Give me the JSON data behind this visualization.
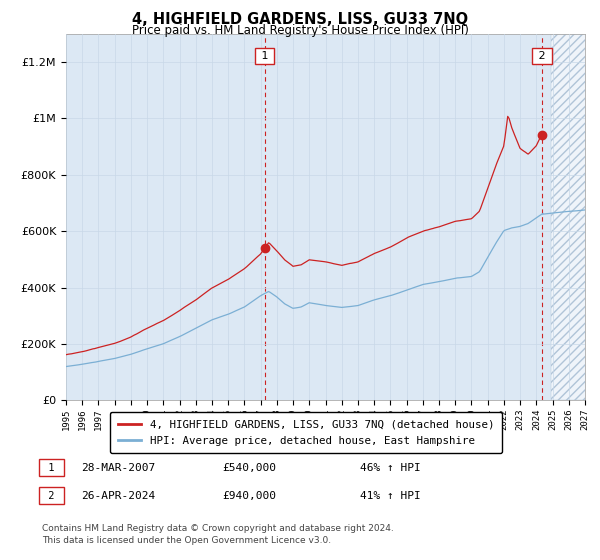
{
  "title": "4, HIGHFIELD GARDENS, LISS, GU33 7NQ",
  "subtitle": "Price paid vs. HM Land Registry's House Price Index (HPI)",
  "legend_line1": "4, HIGHFIELD GARDENS, LISS, GU33 7NQ (detached house)",
  "legend_line2": "HPI: Average price, detached house, East Hampshire",
  "note_line1": "Contains HM Land Registry data © Crown copyright and database right 2024.",
  "note_line2": "This data is licensed under the Open Government Licence v3.0.",
  "annotation1_label": "1",
  "annotation1_date": "28-MAR-2007",
  "annotation1_price": "£540,000",
  "annotation1_hpi": "46% ↑ HPI",
  "annotation2_label": "2",
  "annotation2_date": "26-APR-2024",
  "annotation2_price": "£940,000",
  "annotation2_hpi": "41% ↑ HPI",
  "hpi_color": "#7bafd4",
  "price_color": "#cc2222",
  "annotation_color": "#cc2222",
  "grid_color": "#c8d8e8",
  "bg_color": "#dce8f4",
  "ylim": [
    0,
    1300000
  ],
  "xlim_start": 1995.0,
  "xlim_end": 2027.0,
  "sale1_x": 2007.25,
  "sale1_y": 540000,
  "sale2_x": 2024.33,
  "sale2_y": 940000,
  "future_start": 2024.9
}
